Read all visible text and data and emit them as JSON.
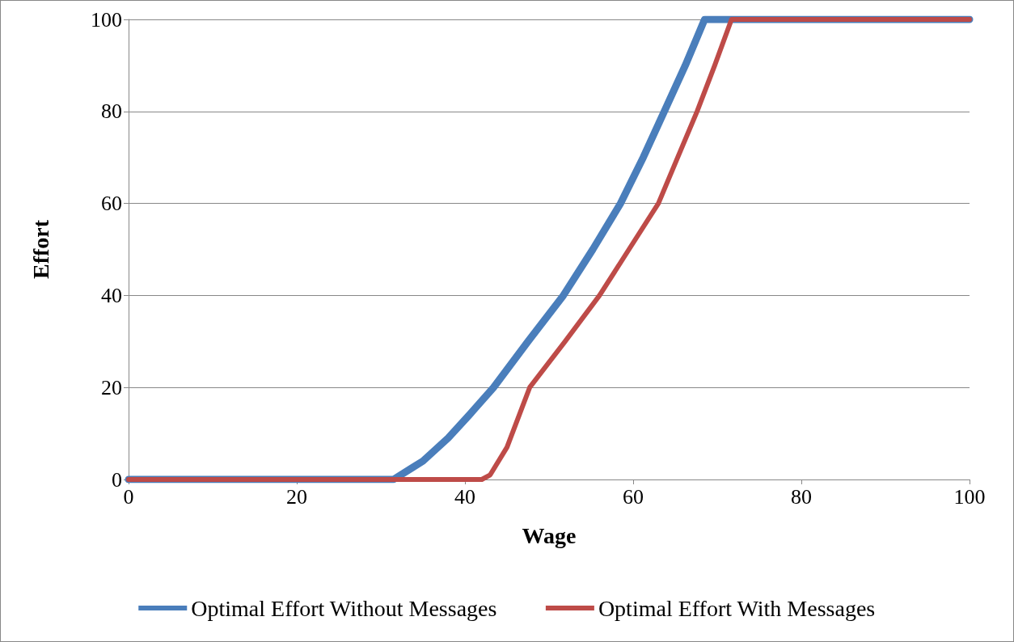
{
  "chart_data": {
    "type": "line",
    "xlabel": "Wage",
    "ylabel": "Effort",
    "xlim": [
      0,
      100
    ],
    "xticks": [
      0,
      20,
      40,
      60,
      80,
      100
    ],
    "ylim": [
      0,
      100
    ],
    "yticks": [
      0,
      20,
      40,
      60,
      80,
      100
    ],
    "grid": "y",
    "legend": "bottom",
    "marker": "none",
    "line_style": "solid",
    "series": [
      {
        "name": "Optimal Effort Without Messages",
        "color": "#4a7ebb",
        "x": [
          0,
          31.5,
          35,
          38,
          40.5,
          43.4,
          47.5,
          51.7,
          55.2,
          58.5,
          61.2,
          63.7,
          66.2,
          68.5,
          100
        ],
        "values": [
          0,
          0,
          4,
          9,
          14,
          20,
          30,
          40,
          50,
          60,
          70,
          80,
          90,
          100,
          100
        ]
      },
      {
        "name": "Optimal Effort With Messages",
        "color": "#be4b48",
        "x": [
          0,
          42,
          43,
          45,
          47.7,
          51.9,
          56,
          59.5,
          63,
          65.3,
          67.6,
          69.7,
          71.7,
          100
        ],
        "values": [
          0,
          0,
          1,
          7,
          20,
          30,
          40,
          50,
          60,
          70,
          80,
          90,
          100,
          100
        ]
      }
    ]
  }
}
